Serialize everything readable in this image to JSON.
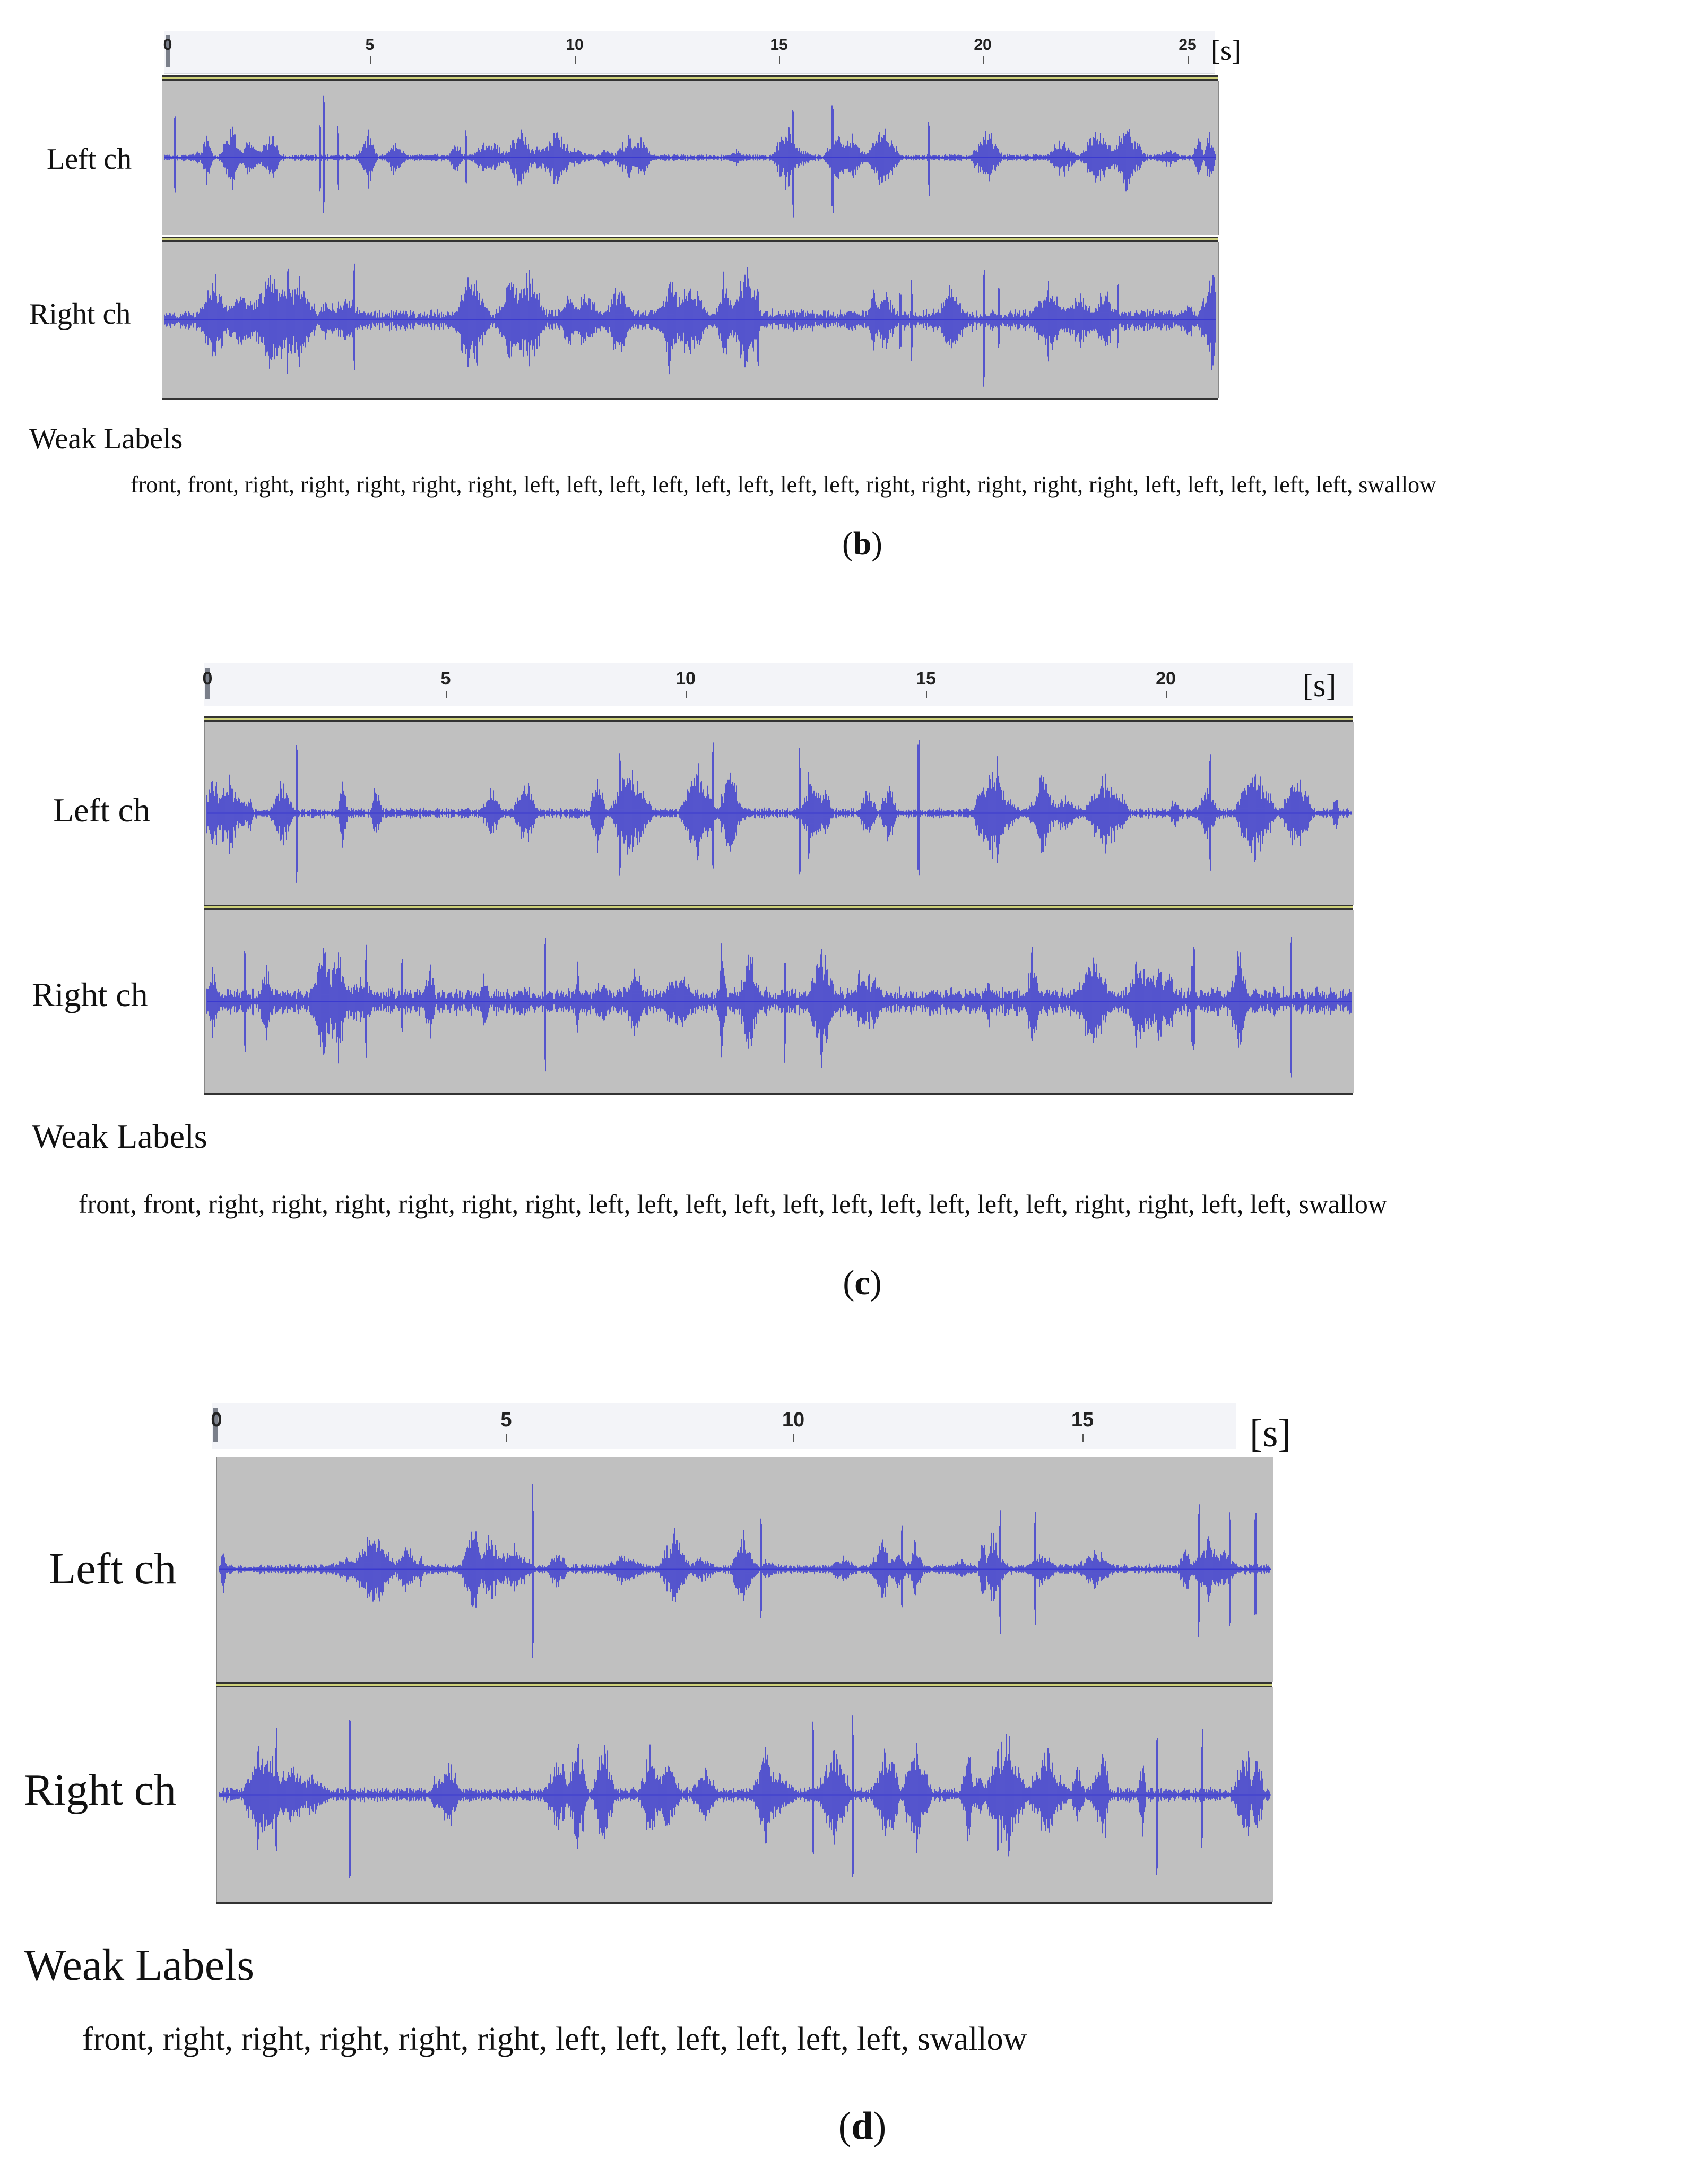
{
  "panels": [
    {
      "id": "b",
      "caption_open": "(",
      "caption_letter": "b",
      "caption_close": ")",
      "unit_label": "[s]",
      "ruler_ticks": [
        "0",
        "5",
        "10",
        "15",
        "20",
        "25"
      ],
      "left_label": "Left ch",
      "right_label": "Right ch",
      "weak_labels_title": "Weak Labels",
      "weak_labels": "front, front, right, right, right, right, right, left, left, left, left, left, left, left, left, right, right, right, right, right, left, left, left, left, left, swallow",
      "waveform_color": "#3a3ad0",
      "track_color": "#c0c0c0"
    },
    {
      "id": "c",
      "caption_open": "(",
      "caption_letter": "c",
      "caption_close": ")",
      "unit_label": "[s]",
      "ruler_ticks": [
        "0",
        "5",
        "10",
        "15",
        "20"
      ],
      "left_label": "Left ch",
      "right_label": "Right ch",
      "weak_labels_title": "Weak Labels",
      "weak_labels": "front, front, right, right, right, right, right, right, left, left, left, left, left, left, left, left, left, left, right, right, left, left, swallow",
      "waveform_color": "#3a3ad0",
      "track_color": "#c0c0c0"
    },
    {
      "id": "d",
      "caption_open": "(",
      "caption_letter": "d",
      "caption_close": ")",
      "unit_label": "[s]",
      "ruler_ticks": [
        "0",
        "5",
        "10",
        "15"
      ],
      "left_label": "Left ch",
      "right_label": "Right ch",
      "weak_labels_title": "Weak Labels",
      "weak_labels": "front, right, right, right, right, right, left, left, left, left, left, left, swallow",
      "waveform_color": "#3a3ad0",
      "track_color": "#c0c0c0"
    }
  ]
}
